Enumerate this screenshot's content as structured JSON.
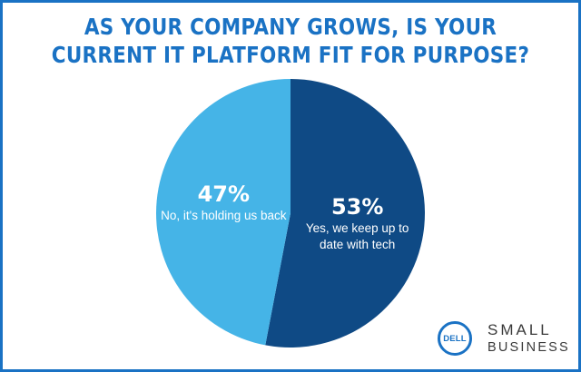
{
  "title_lines": [
    "AS YOUR COMPANY GROWS, IS YOUR",
    "CURRENT IT PLATFORM FIT FOR PURPOSE?"
  ],
  "colors": {
    "accent": "#1a72c4",
    "light_slice": "#45b4e7",
    "dark_slice": "#0f4a85"
  },
  "chart_data": {
    "type": "pie",
    "title": "AS YOUR COMPANY GROWS, IS YOUR CURRENT IT PLATFORM FIT FOR PURPOSE?",
    "slices": [
      {
        "label": "Yes, we keep up to date with tech",
        "label_lines": [
          "Yes, we keep up to",
          "date with tech"
        ],
        "value": 53,
        "display": "53%",
        "color": "#0f4a85"
      },
      {
        "label": "No, it's holding us back",
        "label_lines": [
          "No, it's holding us back"
        ],
        "value": 47,
        "display": "47%",
        "color": "#45b4e7"
      }
    ],
    "start_angle_deg": 0,
    "direction": "clockwise",
    "legend": "none"
  },
  "logo": {
    "mark_text": "DELL",
    "line1": "SMALL",
    "line2": "BUSINESS"
  }
}
